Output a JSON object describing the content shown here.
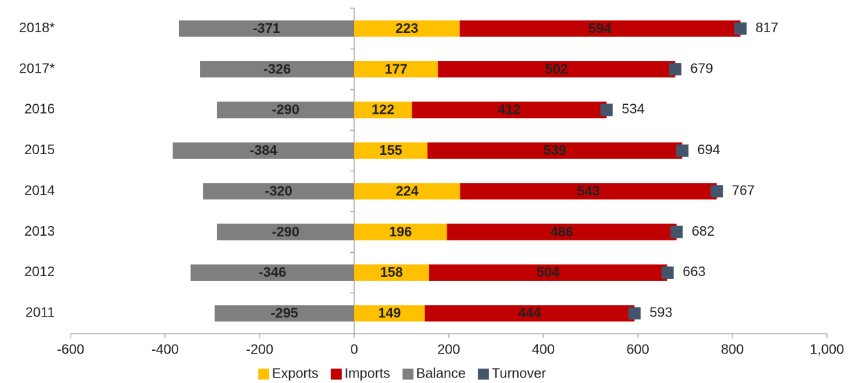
{
  "chart_data": {
    "type": "bar",
    "orientation": "horizontal",
    "categories": [
      "2018*",
      "2017*",
      "2016",
      "2015",
      "2014",
      "2013",
      "2012",
      "2011"
    ],
    "series": [
      {
        "name": "Exports",
        "color": "#ffc000",
        "label_color": "#333333",
        "stacked": true,
        "values": [
          223,
          177,
          122,
          155,
          224,
          196,
          158,
          149
        ]
      },
      {
        "name": "Imports",
        "color": "#c00000",
        "label_color": "#ffffff",
        "stacked": true,
        "values": [
          594,
          502,
          412,
          539,
          543,
          486,
          504,
          444
        ]
      },
      {
        "name": "Balance",
        "color": "#7f7f7f",
        "label_color": "#333333",
        "stacked": false,
        "values": [
          -371,
          -326,
          -290,
          -384,
          -320,
          -290,
          -346,
          -295
        ]
      },
      {
        "name": "Turnover",
        "color": "#44546a",
        "label_color": "#222222",
        "marker": "square",
        "values": [
          817,
          679,
          534,
          694,
          767,
          682,
          663,
          593
        ]
      }
    ],
    "xlim": [
      -600,
      1000
    ],
    "xticks": [
      -600,
      -400,
      -200,
      0,
      200,
      400,
      600,
      800,
      {
        "value": 1000,
        "label": "1,000"
      }
    ],
    "legend": "bottom"
  }
}
